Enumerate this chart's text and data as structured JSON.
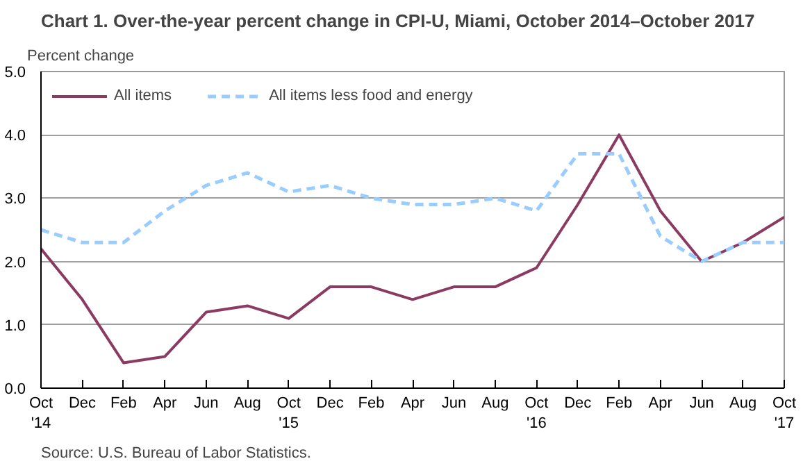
{
  "chart_data": {
    "type": "line",
    "title": "Chart 1. Over-the-year percent change in CPI-U, Miami, October 2014–October  2017",
    "ylabel": "Percent change",
    "categories": [
      "Oct\n'14",
      "Dec",
      "Feb",
      "Apr",
      "Jun",
      "Aug",
      "Oct\n'15",
      "Dec",
      "Feb",
      "Apr",
      "Jun",
      "Aug",
      "Oct\n'16",
      "Dec",
      "Feb",
      "Apr",
      "Jun",
      "Aug",
      "Oct\n'17"
    ],
    "series": [
      {
        "name": "All items",
        "color": "#8b3a62",
        "line_style": "solid",
        "values": [
          2.2,
          1.4,
          0.4,
          0.5,
          1.2,
          1.3,
          1.1,
          1.6,
          1.6,
          1.4,
          1.6,
          1.6,
          1.9,
          2.9,
          4.0,
          2.8,
          2.0,
          2.3,
          2.7
        ]
      },
      {
        "name": "All items less food and energy",
        "color": "#99ccff",
        "line_style": "dashed",
        "values": [
          2.5,
          2.3,
          2.3,
          2.8,
          3.2,
          3.4,
          3.1,
          3.2,
          3.0,
          2.9,
          2.9,
          3.0,
          2.8,
          3.7,
          3.7,
          2.4,
          2.0,
          2.3,
          2.3
        ]
      }
    ],
    "ylim": [
      0,
      5
    ],
    "yticks": [
      {
        "value": 0,
        "label": "0.0"
      },
      {
        "value": 1,
        "label": "1.0"
      },
      {
        "value": 2,
        "label": "2.0"
      },
      {
        "value": 3,
        "label": "3.0"
      },
      {
        "value": 4,
        "label": "4.0"
      },
      {
        "value": 5,
        "label": "5.0"
      }
    ],
    "grid": "y",
    "legend": "top left",
    "marker": "none",
    "annotations": [
      "Source: U.S. Bureau of Labor Statistics."
    ]
  }
}
